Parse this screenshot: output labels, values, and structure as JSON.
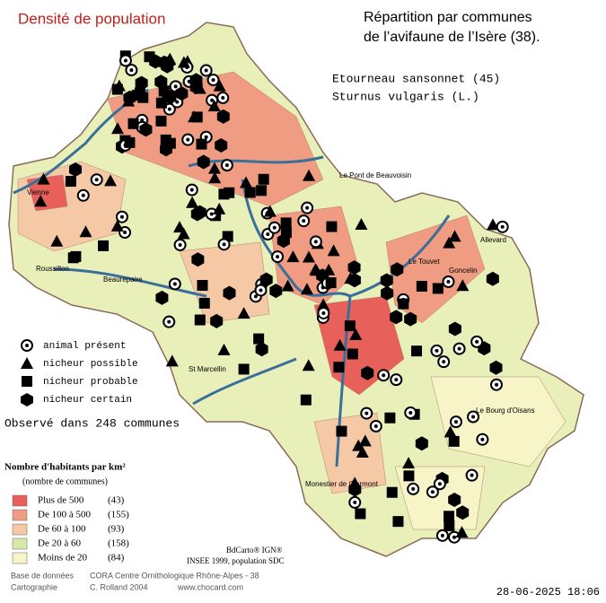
{
  "header": {
    "title": "Densité de population",
    "heading": [
      "Répartition par communes",
      "de l’avifaune de l’Isère (38)."
    ],
    "species": "Etourneau sansonnet  (45)",
    "latin": "Sturnus vulgaris (L.)"
  },
  "symbol_legend": [
    "animal présent",
    "nicheur possible",
    "nicheur probable",
    "nicheur certain"
  ],
  "observed": "Observé dans 248 communes",
  "density_legend": {
    "title": "Nombre d'habitants par km²",
    "subtitle": "(nombre de communes)",
    "rows": [
      {
        "label": "Plus de 500",
        "count": "(43)",
        "color": "#e8605a"
      },
      {
        "label": "De 100 à 500",
        "count": "(155)",
        "color": "#ef9c82"
      },
      {
        "label": "De 60 à 100",
        "count": "(93)",
        "color": "#f5c8a6"
      },
      {
        "label": "De 20 à 60",
        "count": "(158)",
        "color": "#d8e8a6"
      },
      {
        "label": "Moins de 20",
        "count": "(84)",
        "color": "#f7f4c8"
      }
    ]
  },
  "sources": [
    "BdCarto® IGN®",
    "INSEE 1999, population SDC"
  ],
  "credits": [
    [
      "Base de données",
      "CORA Centre Ornithologique Rhône-Alpes - 38"
    ],
    [
      "Cartographie",
      "C. Rolland 2004"
    ]
  ],
  "website": "www.chocard.com",
  "places": [
    "Vienne",
    "Le Pont de Beauvoisin",
    "Roussillon",
    "Beaurepaire",
    "St Marcellin",
    "Le Touvet",
    "Goncelin",
    "Allevard",
    "Le Bourg d'Oisans",
    "Monestier de Clermont"
  ],
  "timestamp": "28-06-2025 18:06"
}
